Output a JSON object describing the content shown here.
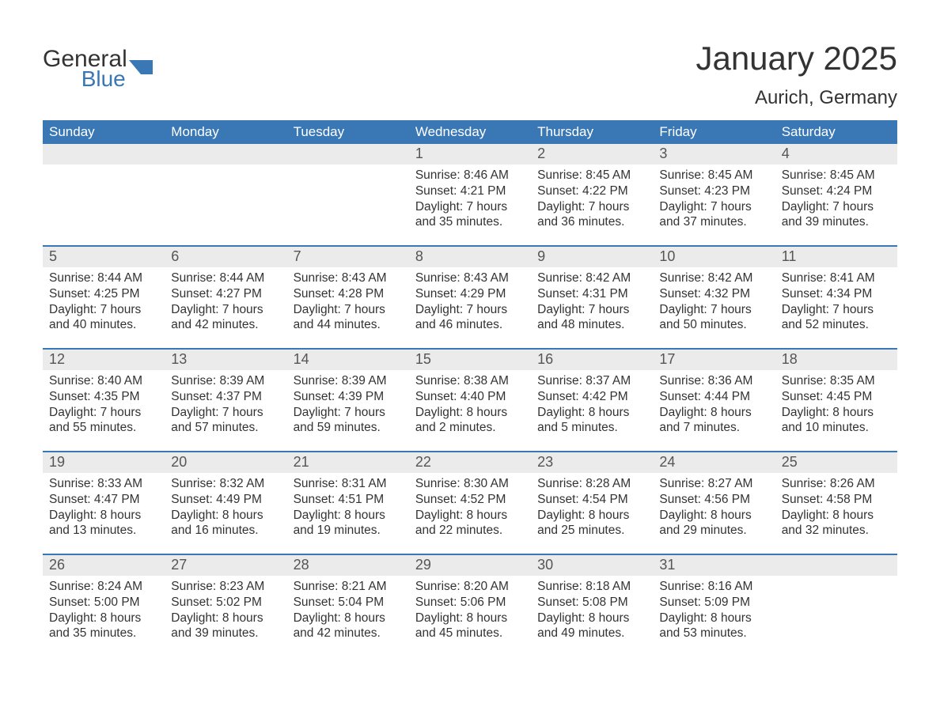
{
  "logo": {
    "general": "General",
    "blue": "Blue",
    "shape_color": "#3a78b5"
  },
  "title": "January 2025",
  "location": "Aurich, Germany",
  "header_bg": "#3a78b5",
  "header_fg": "#ffffff",
  "daynum_bg": "#ebebeb",
  "border_color": "#3a78b5",
  "text_color": "#333333",
  "weekdays": [
    "Sunday",
    "Monday",
    "Tuesday",
    "Wednesday",
    "Thursday",
    "Friday",
    "Saturday"
  ],
  "weeks": [
    [
      {
        "n": "",
        "lines": []
      },
      {
        "n": "",
        "lines": []
      },
      {
        "n": "",
        "lines": []
      },
      {
        "n": "1",
        "lines": [
          "Sunrise: 8:46 AM",
          "Sunset: 4:21 PM",
          "Daylight: 7 hours and 35 minutes."
        ]
      },
      {
        "n": "2",
        "lines": [
          "Sunrise: 8:45 AM",
          "Sunset: 4:22 PM",
          "Daylight: 7 hours and 36 minutes."
        ]
      },
      {
        "n": "3",
        "lines": [
          "Sunrise: 8:45 AM",
          "Sunset: 4:23 PM",
          "Daylight: 7 hours and 37 minutes."
        ]
      },
      {
        "n": "4",
        "lines": [
          "Sunrise: 8:45 AM",
          "Sunset: 4:24 PM",
          "Daylight: 7 hours and 39 minutes."
        ]
      }
    ],
    [
      {
        "n": "5",
        "lines": [
          "Sunrise: 8:44 AM",
          "Sunset: 4:25 PM",
          "Daylight: 7 hours and 40 minutes."
        ]
      },
      {
        "n": "6",
        "lines": [
          "Sunrise: 8:44 AM",
          "Sunset: 4:27 PM",
          "Daylight: 7 hours and 42 minutes."
        ]
      },
      {
        "n": "7",
        "lines": [
          "Sunrise: 8:43 AM",
          "Sunset: 4:28 PM",
          "Daylight: 7 hours and 44 minutes."
        ]
      },
      {
        "n": "8",
        "lines": [
          "Sunrise: 8:43 AM",
          "Sunset: 4:29 PM",
          "Daylight: 7 hours and 46 minutes."
        ]
      },
      {
        "n": "9",
        "lines": [
          "Sunrise: 8:42 AM",
          "Sunset: 4:31 PM",
          "Daylight: 7 hours and 48 minutes."
        ]
      },
      {
        "n": "10",
        "lines": [
          "Sunrise: 8:42 AM",
          "Sunset: 4:32 PM",
          "Daylight: 7 hours and 50 minutes."
        ]
      },
      {
        "n": "11",
        "lines": [
          "Sunrise: 8:41 AM",
          "Sunset: 4:34 PM",
          "Daylight: 7 hours and 52 minutes."
        ]
      }
    ],
    [
      {
        "n": "12",
        "lines": [
          "Sunrise: 8:40 AM",
          "Sunset: 4:35 PM",
          "Daylight: 7 hours and 55 minutes."
        ]
      },
      {
        "n": "13",
        "lines": [
          "Sunrise: 8:39 AM",
          "Sunset: 4:37 PM",
          "Daylight: 7 hours and 57 minutes."
        ]
      },
      {
        "n": "14",
        "lines": [
          "Sunrise: 8:39 AM",
          "Sunset: 4:39 PM",
          "Daylight: 7 hours and 59 minutes."
        ]
      },
      {
        "n": "15",
        "lines": [
          "Sunrise: 8:38 AM",
          "Sunset: 4:40 PM",
          "Daylight: 8 hours and 2 minutes."
        ]
      },
      {
        "n": "16",
        "lines": [
          "Sunrise: 8:37 AM",
          "Sunset: 4:42 PM",
          "Daylight: 8 hours and 5 minutes."
        ]
      },
      {
        "n": "17",
        "lines": [
          "Sunrise: 8:36 AM",
          "Sunset: 4:44 PM",
          "Daylight: 8 hours and 7 minutes."
        ]
      },
      {
        "n": "18",
        "lines": [
          "Sunrise: 8:35 AM",
          "Sunset: 4:45 PM",
          "Daylight: 8 hours and 10 minutes."
        ]
      }
    ],
    [
      {
        "n": "19",
        "lines": [
          "Sunrise: 8:33 AM",
          "Sunset: 4:47 PM",
          "Daylight: 8 hours and 13 minutes."
        ]
      },
      {
        "n": "20",
        "lines": [
          "Sunrise: 8:32 AM",
          "Sunset: 4:49 PM",
          "Daylight: 8 hours and 16 minutes."
        ]
      },
      {
        "n": "21",
        "lines": [
          "Sunrise: 8:31 AM",
          "Sunset: 4:51 PM",
          "Daylight: 8 hours and 19 minutes."
        ]
      },
      {
        "n": "22",
        "lines": [
          "Sunrise: 8:30 AM",
          "Sunset: 4:52 PM",
          "Daylight: 8 hours and 22 minutes."
        ]
      },
      {
        "n": "23",
        "lines": [
          "Sunrise: 8:28 AM",
          "Sunset: 4:54 PM",
          "Daylight: 8 hours and 25 minutes."
        ]
      },
      {
        "n": "24",
        "lines": [
          "Sunrise: 8:27 AM",
          "Sunset: 4:56 PM",
          "Daylight: 8 hours and 29 minutes."
        ]
      },
      {
        "n": "25",
        "lines": [
          "Sunrise: 8:26 AM",
          "Sunset: 4:58 PM",
          "Daylight: 8 hours and 32 minutes."
        ]
      }
    ],
    [
      {
        "n": "26",
        "lines": [
          "Sunrise: 8:24 AM",
          "Sunset: 5:00 PM",
          "Daylight: 8 hours and 35 minutes."
        ]
      },
      {
        "n": "27",
        "lines": [
          "Sunrise: 8:23 AM",
          "Sunset: 5:02 PM",
          "Daylight: 8 hours and 39 minutes."
        ]
      },
      {
        "n": "28",
        "lines": [
          "Sunrise: 8:21 AM",
          "Sunset: 5:04 PM",
          "Daylight: 8 hours and 42 minutes."
        ]
      },
      {
        "n": "29",
        "lines": [
          "Sunrise: 8:20 AM",
          "Sunset: 5:06 PM",
          "Daylight: 8 hours and 45 minutes."
        ]
      },
      {
        "n": "30",
        "lines": [
          "Sunrise: 8:18 AM",
          "Sunset: 5:08 PM",
          "Daylight: 8 hours and 49 minutes."
        ]
      },
      {
        "n": "31",
        "lines": [
          "Sunrise: 8:16 AM",
          "Sunset: 5:09 PM",
          "Daylight: 8 hours and 53 minutes."
        ]
      },
      {
        "n": "",
        "lines": []
      }
    ]
  ]
}
